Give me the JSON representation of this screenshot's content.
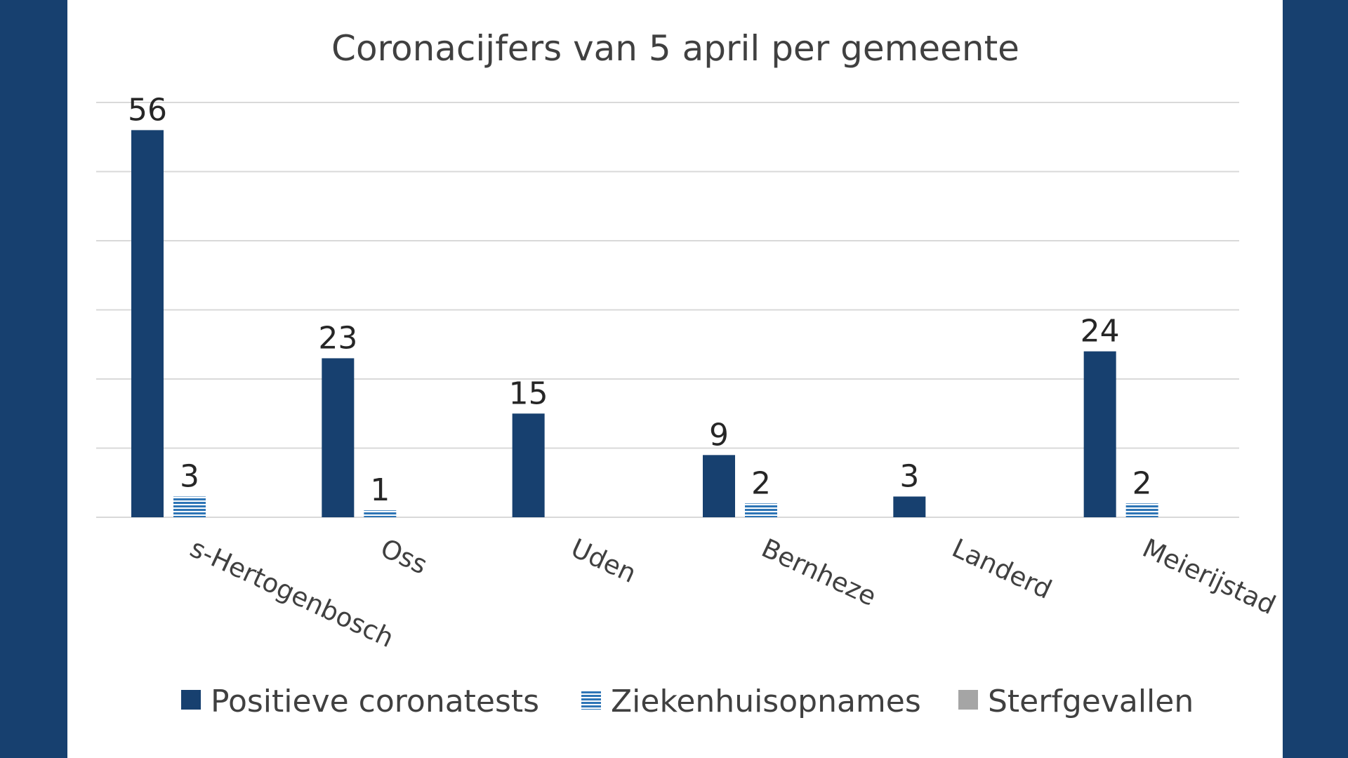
{
  "chart_data": {
    "type": "bar",
    "title": "Coronacijfers van 5 april per gemeente",
    "categories": [
      "s-Hertogenbosch",
      "Oss",
      "Uden",
      "Bernheze",
      "Landerd",
      "Meierijstad"
    ],
    "series": [
      {
        "name": "Positieve coronatests",
        "values": [
          56,
          23,
          15,
          9,
          3,
          24
        ],
        "labels": [
          "56",
          "23",
          "15",
          "9",
          "3",
          "24"
        ]
      },
      {
        "name": "Ziekenhuisopnames",
        "values": [
          3,
          1,
          null,
          2,
          null,
          2
        ],
        "labels": [
          "3",
          "1",
          "",
          "2",
          "",
          "2"
        ]
      },
      {
        "name": "Sterfgevallen",
        "values": [
          null,
          null,
          null,
          null,
          null,
          null
        ],
        "labels": [
          "",
          "",
          "",
          "",
          "",
          ""
        ]
      }
    ],
    "ylim": [
      0,
      60
    ],
    "ytick_step": 10,
    "y_tick_labels_shown": false,
    "grid": true,
    "legend_position": "bottom",
    "colors": {
      "positive": "#17406f",
      "hospital": "#2e75b6",
      "deaths": "#a5a5a5",
      "background": "#17406f",
      "panel": "#ffffff"
    }
  }
}
